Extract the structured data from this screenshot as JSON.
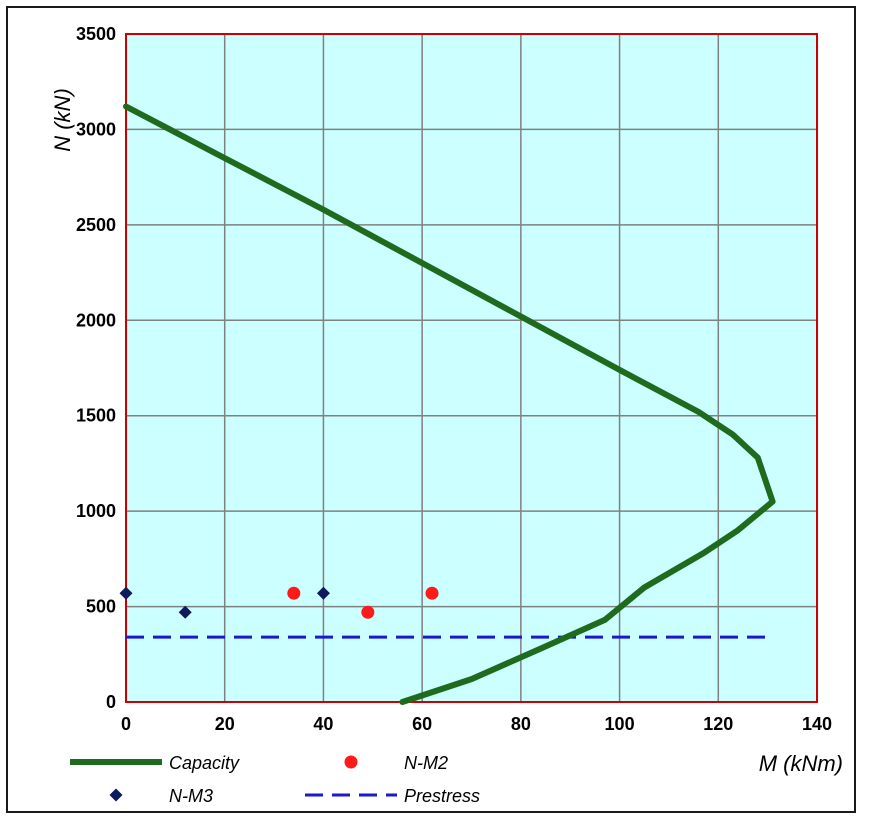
{
  "chart_data": {
    "type": "line",
    "title": "",
    "xlabel": "M (kNm)",
    "ylabel": "N (kN)",
    "xlim": [
      0,
      140
    ],
    "ylim": [
      0,
      3500
    ],
    "x_ticks": [
      0,
      20,
      40,
      60,
      80,
      100,
      120,
      140
    ],
    "y_ticks": [
      0,
      500,
      1000,
      1500,
      2000,
      2500,
      3000,
      3500
    ],
    "grid": true,
    "legend_position": "bottom",
    "colors": {
      "plot_background": "#ccffff",
      "plot_border": "#cc0000",
      "grid": "#808080",
      "capacity": "#1e6b1e",
      "nm2": "#ff1a1a",
      "nm3": "#0d1a5c",
      "prestress": "#1a1acc"
    },
    "series": [
      {
        "name": "Capacity",
        "kind": "line",
        "points": [
          [
            0,
            3120
          ],
          [
            20,
            2850
          ],
          [
            40,
            2580
          ],
          [
            60,
            2300
          ],
          [
            80,
            2020
          ],
          [
            100,
            1740
          ],
          [
            116,
            1520
          ],
          [
            123,
            1400
          ],
          [
            128,
            1280
          ],
          [
            131,
            1050
          ],
          [
            124,
            900
          ],
          [
            117,
            780
          ],
          [
            105,
            600
          ],
          [
            97,
            430
          ],
          [
            84,
            280
          ],
          [
            70,
            120
          ],
          [
            56,
            0
          ]
        ]
      },
      {
        "name": "N-M2",
        "kind": "scatter",
        "points": [
          [
            34,
            570
          ],
          [
            49,
            470
          ],
          [
            62,
            570
          ]
        ]
      },
      {
        "name": "N-M3",
        "kind": "scatter",
        "points": [
          [
            0,
            570
          ],
          [
            12,
            470
          ],
          [
            40,
            570
          ]
        ]
      },
      {
        "name": "Prestress",
        "kind": "dashed",
        "points": [
          [
            0,
            340
          ],
          [
            131,
            340
          ]
        ]
      }
    ]
  }
}
